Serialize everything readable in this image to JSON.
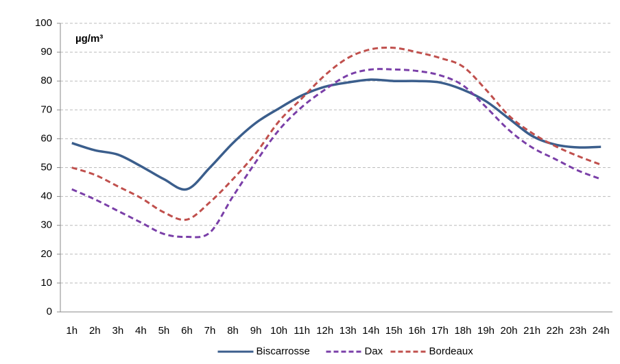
{
  "chart_data": {
    "type": "line",
    "unit_label": "µg/m³",
    "categories": [
      "1h",
      "2h",
      "3h",
      "4h",
      "5h",
      "6h",
      "7h",
      "8h",
      "9h",
      "10h",
      "11h",
      "12h",
      "13h",
      "14h",
      "15h",
      "16h",
      "17h",
      "18h",
      "19h",
      "20h",
      "21h",
      "22h",
      "23h",
      "24h"
    ],
    "series": [
      {
        "name": "Biscarrosse",
        "color": "#3b5e8c",
        "dash": "solid",
        "values": [
          58.5,
          56,
          54.5,
          50.5,
          46,
          42.5,
          50,
          58.5,
          65.5,
          70.5,
          75,
          78,
          79.5,
          80.5,
          80,
          80,
          79.5,
          77,
          73,
          67,
          61,
          58,
          57,
          57.2
        ]
      },
      {
        "name": "Dax",
        "color": "#7a3fa8",
        "dash": "dashed",
        "values": [
          42.5,
          39,
          35,
          31,
          27,
          26,
          27.5,
          40,
          52,
          63,
          71,
          77,
          82,
          84,
          84,
          83.5,
          82,
          78.5,
          71,
          63,
          57,
          53,
          49,
          46
        ]
      },
      {
        "name": "Bordeaux",
        "color": "#c0504d",
        "dash": "dashed",
        "values": [
          50,
          47.5,
          43.5,
          39.5,
          34.5,
          32,
          38,
          46,
          55,
          66,
          74,
          82,
          88,
          91,
          91.5,
          90,
          88,
          85,
          77,
          68,
          62,
          57.5,
          54,
          51
        ]
      }
    ],
    "ylim": [
      0,
      100
    ],
    "yticks": [
      0,
      10,
      20,
      30,
      40,
      50,
      60,
      70,
      80,
      90,
      100
    ],
    "grid": true,
    "legend": "bottom"
  }
}
